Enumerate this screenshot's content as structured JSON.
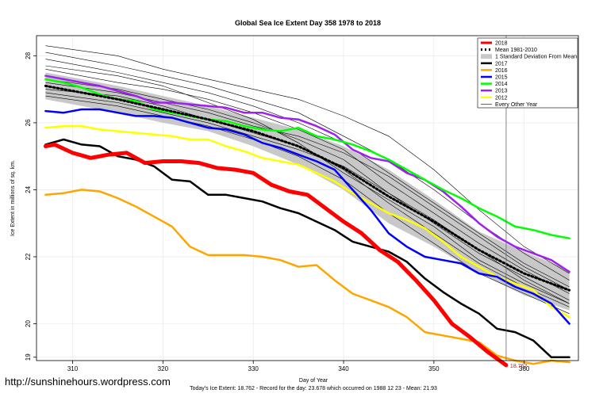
{
  "chart_data": {
    "type": "line",
    "title": "Global Sea Ice Extent Day 358 1978 to 2018",
    "xlabel": "Day of Year",
    "ylabel": "Ice Extent in millions of sq. km.",
    "xlim": [
      306,
      366
    ],
    "ylim": [
      18.9,
      28.6
    ],
    "xticks": [
      310,
      320,
      330,
      340,
      350,
      360
    ],
    "yticks": [
      19,
      20,
      22,
      24,
      26,
      28
    ],
    "grid": true,
    "legend_position": "top-right",
    "marker_day": 358,
    "today_label": "18.762",
    "band": {
      "name": "1 Standard Deviation From Mean",
      "x": [
        307,
        310,
        315,
        320,
        325,
        330,
        335,
        340,
        345,
        350,
        355,
        360,
        365
      ],
      "lower": [
        26.7,
        26.55,
        26.3,
        26.0,
        25.75,
        25.3,
        24.75,
        24.0,
        23.0,
        22.3,
        21.5,
        20.85,
        20.4
      ],
      "upper": [
        27.5,
        27.35,
        27.1,
        26.8,
        26.5,
        26.15,
        25.8,
        25.3,
        24.6,
        23.7,
        22.75,
        22.15,
        21.6
      ]
    },
    "series": [
      {
        "name": "2018",
        "color": "#ff0000",
        "width": 5,
        "dash": "",
        "x": [
          307,
          308,
          310,
          312,
          314,
          316,
          318,
          320,
          322,
          324,
          326,
          328,
          330,
          332,
          334,
          336,
          338,
          340,
          342,
          344,
          346,
          348,
          350,
          352,
          354,
          356,
          358
        ],
        "values": [
          25.3,
          25.35,
          25.1,
          24.95,
          25.05,
          25.1,
          24.8,
          24.85,
          24.85,
          24.8,
          24.65,
          24.6,
          24.5,
          24.15,
          23.95,
          23.85,
          23.45,
          23.05,
          22.7,
          22.2,
          21.85,
          21.3,
          20.7,
          20.0,
          19.6,
          19.15,
          18.762
        ]
      },
      {
        "name": "Mean 1981-2010",
        "color": "#000000",
        "width": 3,
        "dash": "2,3",
        "x": [
          307,
          310,
          315,
          320,
          325,
          330,
          335,
          340,
          345,
          350,
          355,
          360,
          365
        ],
        "values": [
          27.1,
          26.95,
          26.7,
          26.4,
          26.1,
          25.75,
          25.3,
          24.65,
          23.8,
          23.05,
          22.2,
          21.5,
          21.0
        ]
      },
      {
        "name": "2017",
        "color": "#000000",
        "width": 2.5,
        "dash": "",
        "x": [
          307,
          309,
          311,
          313,
          315,
          317,
          319,
          321,
          323,
          325,
          327,
          329,
          331,
          333,
          335,
          337,
          339,
          341,
          343,
          345,
          347,
          349,
          351,
          353,
          355,
          357,
          359,
          361,
          363,
          365
        ],
        "values": [
          25.35,
          25.5,
          25.35,
          25.3,
          25.0,
          24.9,
          24.7,
          24.3,
          24.25,
          23.85,
          23.85,
          23.75,
          23.65,
          23.45,
          23.3,
          23.05,
          22.8,
          22.45,
          22.3,
          22.15,
          21.85,
          21.35,
          20.95,
          20.6,
          20.3,
          19.85,
          19.75,
          19.5,
          19.0,
          19.0
        ]
      },
      {
        "name": "2016",
        "color": "#ffa500",
        "width": 2.5,
        "dash": "",
        "x": [
          307,
          309,
          311,
          313,
          315,
          317,
          319,
          321,
          323,
          325,
          327,
          329,
          331,
          333,
          335,
          337,
          339,
          341,
          343,
          345,
          347,
          349,
          351,
          353,
          355,
          357,
          359,
          361,
          363,
          365
        ],
        "values": [
          23.85,
          23.9,
          24.0,
          23.95,
          23.75,
          23.5,
          23.2,
          22.9,
          22.3,
          22.05,
          22.05,
          22.05,
          22.0,
          21.9,
          21.7,
          21.75,
          21.3,
          20.9,
          20.7,
          20.5,
          20.2,
          19.75,
          19.65,
          19.55,
          19.45,
          19.05,
          18.9,
          18.8,
          18.9,
          18.85
        ]
      },
      {
        "name": "2015",
        "color": "#0000ff",
        "width": 2.5,
        "dash": "",
        "x": [
          307,
          309,
          311,
          313,
          315,
          317,
          319,
          321,
          323,
          325,
          327,
          329,
          331,
          333,
          335,
          337,
          339,
          341,
          343,
          345,
          347,
          349,
          351,
          353,
          355,
          357,
          359,
          361,
          363,
          365
        ],
        "values": [
          26.35,
          26.3,
          26.4,
          26.4,
          26.3,
          26.2,
          26.2,
          26.15,
          26.0,
          25.85,
          25.8,
          25.65,
          25.4,
          25.25,
          25.05,
          24.85,
          24.6,
          24.0,
          23.4,
          22.7,
          22.3,
          22.0,
          21.9,
          21.8,
          21.5,
          21.4,
          21.1,
          20.9,
          20.6,
          20.0
        ]
      },
      {
        "name": "2014",
        "color": "#00ff00",
        "width": 2.5,
        "dash": "",
        "x": [
          307,
          309,
          311,
          313,
          315,
          317,
          319,
          321,
          323,
          325,
          327,
          329,
          331,
          333,
          335,
          337,
          339,
          341,
          343,
          345,
          347,
          349,
          351,
          353,
          355,
          357,
          359,
          361,
          363,
          365
        ],
        "values": [
          27.3,
          27.2,
          27.05,
          26.85,
          26.7,
          26.65,
          26.4,
          26.3,
          26.2,
          26.1,
          26.05,
          25.9,
          25.8,
          25.75,
          25.85,
          25.6,
          25.5,
          25.35,
          25.15,
          24.9,
          24.6,
          24.3,
          24.0,
          23.75,
          23.45,
          23.2,
          22.9,
          22.8,
          22.65,
          22.55
        ]
      },
      {
        "name": "2013",
        "color": "#a020f0",
        "width": 2.5,
        "dash": "",
        "x": [
          307,
          309,
          311,
          313,
          315,
          317,
          319,
          321,
          323,
          325,
          327,
          329,
          331,
          333,
          335,
          337,
          339,
          341,
          343,
          345,
          347,
          349,
          351,
          353,
          355,
          357,
          359,
          361,
          363,
          365
        ],
        "values": [
          27.4,
          27.3,
          27.2,
          27.1,
          26.95,
          26.8,
          26.6,
          26.6,
          26.55,
          26.5,
          26.45,
          26.3,
          26.3,
          26.15,
          26.1,
          25.9,
          25.65,
          25.2,
          24.95,
          24.85,
          24.5,
          24.3,
          23.95,
          23.5,
          23.0,
          22.6,
          22.3,
          22.1,
          21.9,
          21.55
        ]
      },
      {
        "name": "2012",
        "color": "#ffff00",
        "width": 2.5,
        "dash": "",
        "x": [
          307,
          309,
          311,
          313,
          315,
          317,
          319,
          321,
          323,
          325,
          327,
          329,
          331,
          333,
          335,
          337,
          339,
          341,
          343,
          345,
          347,
          349,
          351,
          353,
          355,
          357,
          359,
          361,
          363,
          365
        ],
        "values": [
          25.85,
          25.9,
          25.9,
          25.8,
          25.75,
          25.7,
          25.65,
          25.6,
          25.5,
          25.5,
          25.3,
          25.15,
          24.95,
          24.85,
          24.75,
          24.5,
          24.25,
          23.9,
          23.6,
          23.3,
          23.1,
          22.85,
          22.45,
          22.0,
          21.7,
          21.4,
          21.2,
          21.0,
          20.5,
          20.2
        ]
      }
    ],
    "other_years_name": "Every Other Year",
    "other_years": [
      {
        "x": [
          307,
          315,
          320,
          325,
          330,
          335,
          340,
          345,
          350,
          355,
          360,
          365
        ],
        "values": [
          28.3,
          28.0,
          27.6,
          27.3,
          27.0,
          26.7,
          26.2,
          25.6,
          24.6,
          23.4,
          22.3,
          21.5
        ]
      },
      {
        "x": [
          307,
          315,
          320,
          325,
          330,
          335,
          340,
          345,
          350,
          355,
          360,
          365
        ],
        "values": [
          28.1,
          27.7,
          27.4,
          27.1,
          26.7,
          26.3,
          25.6,
          24.9,
          24.0,
          23.0,
          22.1,
          21.3
        ]
      },
      {
        "x": [
          307,
          315,
          320,
          325,
          330,
          335,
          340,
          345,
          350,
          355,
          360,
          365
        ],
        "values": [
          27.9,
          27.5,
          27.2,
          26.9,
          26.5,
          26.0,
          25.4,
          24.5,
          23.6,
          22.7,
          21.8,
          21.1
        ]
      },
      {
        "x": [
          307,
          315,
          320,
          325,
          330,
          335,
          340,
          345,
          350,
          355,
          360,
          365
        ],
        "values": [
          27.6,
          27.2,
          27.0,
          26.7,
          26.3,
          25.8,
          25.2,
          24.2,
          23.3,
          22.4,
          21.6,
          20.9
        ]
      },
      {
        "x": [
          307,
          315,
          320,
          325,
          330,
          335,
          340,
          345,
          350,
          355,
          360,
          365
        ],
        "values": [
          27.3,
          27.0,
          26.7,
          26.4,
          26.0,
          25.5,
          24.9,
          23.9,
          23.0,
          22.1,
          21.4,
          20.7
        ]
      },
      {
        "x": [
          307,
          315,
          320,
          325,
          330,
          335,
          340,
          345,
          350,
          355,
          360,
          365
        ],
        "values": [
          27.0,
          26.8,
          26.5,
          26.1,
          25.7,
          25.3,
          24.6,
          23.6,
          22.7,
          21.8,
          21.1,
          20.5
        ]
      },
      {
        "x": [
          307,
          315,
          320,
          325,
          330,
          335,
          340,
          345,
          350,
          355,
          360,
          365
        ],
        "values": [
          26.8,
          26.5,
          26.2,
          25.9,
          25.5,
          25.0,
          24.3,
          23.3,
          22.4,
          21.5,
          20.9,
          20.3
        ]
      },
      {
        "x": [
          307,
          315,
          320,
          325,
          330,
          335,
          340,
          345,
          350,
          355,
          360,
          365
        ],
        "values": [
          27.7,
          27.4,
          27.1,
          26.6,
          26.1,
          25.4,
          24.5,
          23.7,
          22.9,
          21.9,
          21.2,
          20.6
        ]
      },
      {
        "x": [
          307,
          315,
          320,
          325,
          330,
          335,
          340,
          345,
          350,
          355,
          360,
          365
        ],
        "values": [
          27.2,
          26.9,
          26.6,
          26.3,
          25.9,
          25.6,
          25.1,
          24.4,
          23.5,
          22.6,
          21.7,
          21.0
        ]
      },
      {
        "x": [
          307,
          315,
          320,
          325,
          330,
          335,
          340,
          345,
          350,
          355,
          360,
          365
        ],
        "values": [
          26.9,
          26.6,
          26.3,
          26.0,
          25.6,
          25.2,
          24.7,
          23.9,
          23.1,
          22.2,
          21.3,
          20.6
        ]
      }
    ],
    "legend": [
      "2018",
      "Mean 1981-2010",
      "1 Standard Deviation From Mean",
      "2017",
      "2016",
      "2015",
      "2014",
      "2013",
      "2012",
      "Every Other Year"
    ]
  },
  "watermark": "http://sunshinehours.wordpress.com",
  "footer": "Today's Ice Extent: 18.762  -  Record for the day: 23.678 which occurred on 1988 12 23  -  Mean: 21.93"
}
